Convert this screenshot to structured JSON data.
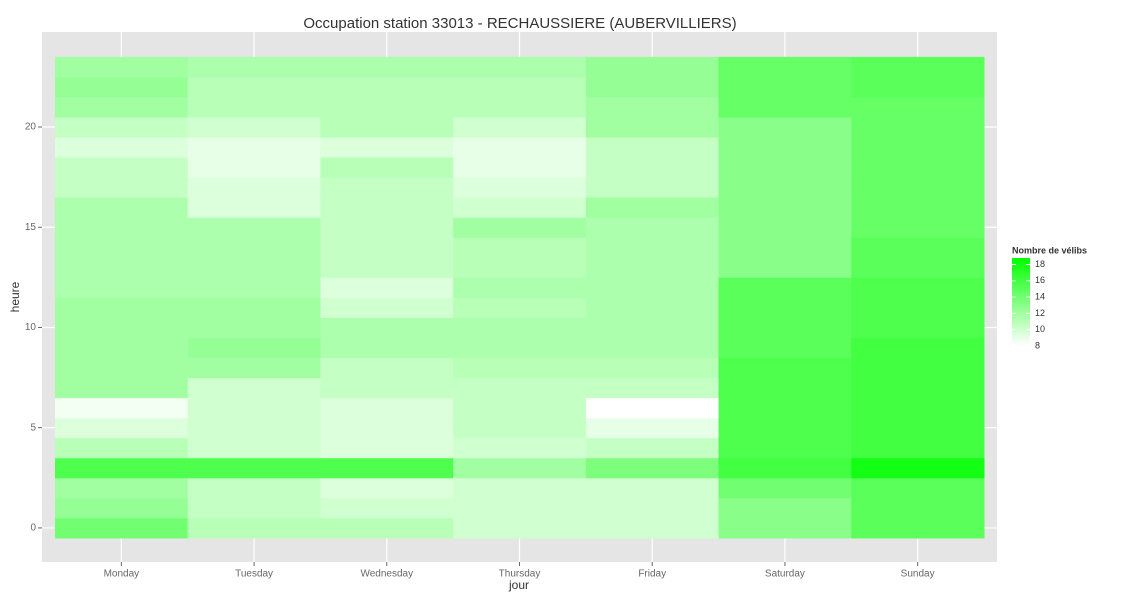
{
  "chart_data": {
    "type": "heatmap",
    "title": "Occupation station 33013 - RECHAUSSIERE (AUBERVILLIERS)",
    "x_label": "jour",
    "y_label": "heure",
    "categories": [
      "Monday",
      "Tuesday",
      "Wednesday",
      "Thursday",
      "Friday",
      "Saturday",
      "Sunday"
    ],
    "y": [
      0,
      1,
      2,
      3,
      4,
      5,
      6,
      7,
      8,
      9,
      10,
      11,
      12,
      13,
      14,
      15,
      16,
      17,
      18,
      19,
      20,
      21,
      22,
      23
    ],
    "values": [
      [
        14,
        12.5,
        12,
        15.5,
        11,
        9.5,
        8.5,
        12,
        12,
        12,
        12,
        12,
        11.5,
        11.5,
        11.5,
        11.5,
        11.5,
        10.5,
        10.5,
        9.5,
        10.5,
        12,
        12.5,
        12
      ],
      [
        11,
        10.5,
        10.5,
        15.5,
        10,
        10,
        10,
        10,
        12,
        12.5,
        12,
        12,
        11.5,
        11.5,
        11.5,
        11.5,
        9.5,
        9.5,
        9,
        9,
        10,
        11,
        11,
        11.5
      ],
      [
        11,
        10,
        9.5,
        15.5,
        9.5,
        9.5,
        9.5,
        10.5,
        10.5,
        11.5,
        11.5,
        10,
        9.5,
        10.5,
        10.5,
        10.5,
        10.5,
        10.5,
        11,
        9.5,
        11,
        11,
        11,
        11.5
      ],
      [
        10,
        10,
        10,
        12,
        10,
        10.5,
        10.5,
        10.5,
        11,
        11.5,
        11.5,
        11,
        11.5,
        11,
        11,
        12,
        10,
        9.5,
        9,
        9,
        10,
        11,
        11,
        11.5
      ],
      [
        10,
        10,
        10,
        13.5,
        10.5,
        9,
        8,
        10.5,
        11,
        11.5,
        11.5,
        11.5,
        11.5,
        11.5,
        11.5,
        11.5,
        12,
        10.5,
        10.5,
        10.5,
        12,
        12,
        12.5,
        12.5
      ],
      [
        13,
        13,
        14,
        16,
        15.5,
        15.5,
        15.5,
        15.5,
        15.5,
        15,
        15,
        15,
        15,
        13,
        13,
        13,
        13,
        13,
        13,
        13,
        13,
        14.5,
        14.5,
        14.5
      ],
      [
        15,
        15,
        15,
        18,
        16,
        16,
        16,
        16,
        16,
        16,
        15.5,
        15.5,
        15.5,
        15,
        15,
        14.5,
        14.5,
        14.5,
        14.5,
        14.5,
        14.5,
        14.5,
        15,
        15
      ]
    ],
    "ylim": [
      -1.7,
      24.74
    ],
    "yticks": [
      0,
      5,
      10,
      15,
      20
    ],
    "grid": true,
    "legend_title": "Nombre de vélibs",
    "clim": [
      8,
      18.8
    ],
    "cticks": [
      8,
      10,
      12,
      14,
      16,
      18
    ],
    "low_color": "#ffffff",
    "high_color": "#00ff00"
  }
}
